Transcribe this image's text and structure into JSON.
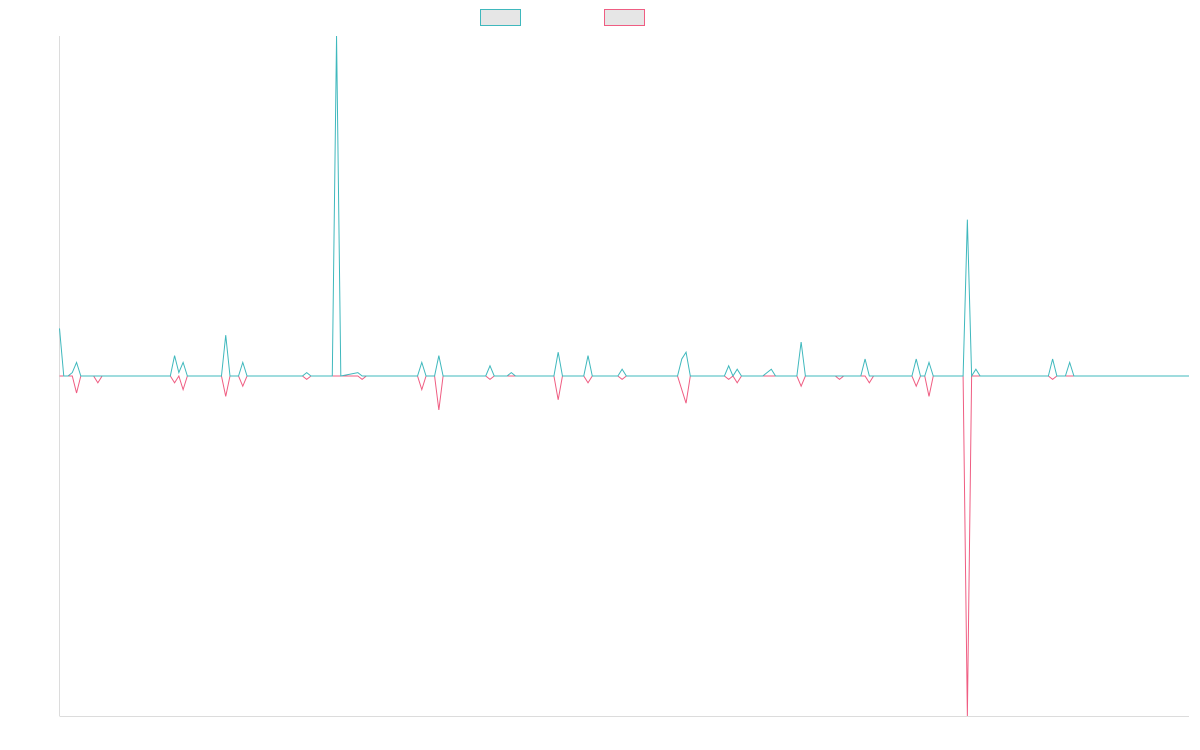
{
  "colors": {
    "series_a": "#3fb8bd",
    "series_b": "#ef5d82",
    "legend_fill": "#e6e6e6",
    "axis": "#dcdcdc"
  },
  "chart_data": {
    "type": "line",
    "title": "",
    "xlabel": "",
    "ylabel": "",
    "ylim": [
      -100,
      100
    ],
    "xlim": [
      0,
      265
    ],
    "grid": false,
    "legend": {
      "placement": "top-center",
      "entries": [
        "",
        ""
      ]
    },
    "series": [
      {
        "color": "#3fb8bd",
        "points": [
          [
            0,
            14
          ],
          [
            1,
            0
          ],
          [
            2,
            0
          ],
          [
            3,
            1
          ],
          [
            4,
            4
          ],
          [
            5,
            0
          ],
          [
            8,
            0
          ],
          [
            9,
            0
          ],
          [
            26,
            0
          ],
          [
            27,
            6
          ],
          [
            28,
            1
          ],
          [
            29,
            4
          ],
          [
            30,
            0
          ],
          [
            38,
            0
          ],
          [
            39,
            12
          ],
          [
            40,
            0
          ],
          [
            42,
            0
          ],
          [
            43,
            4
          ],
          [
            44,
            0
          ],
          [
            45,
            0
          ],
          [
            48,
            0
          ],
          [
            49,
            0
          ],
          [
            57,
            0
          ],
          [
            58,
            1
          ],
          [
            59,
            0
          ],
          [
            64,
            0
          ],
          [
            65,
            100
          ],
          [
            66,
            0
          ],
          [
            70,
            1
          ],
          [
            71,
            0
          ],
          [
            84,
            0
          ],
          [
            85,
            4
          ],
          [
            86,
            0
          ],
          [
            88,
            0
          ],
          [
            89,
            6
          ],
          [
            90,
            0
          ],
          [
            94,
            0
          ],
          [
            95,
            0
          ],
          [
            100,
            0
          ],
          [
            101,
            3
          ],
          [
            102,
            0
          ],
          [
            105,
            0
          ],
          [
            106,
            1
          ],
          [
            107,
            0
          ],
          [
            116,
            0
          ],
          [
            117,
            7
          ],
          [
            118,
            0
          ],
          [
            123,
            0
          ],
          [
            124,
            6
          ],
          [
            125,
            0
          ],
          [
            131,
            0
          ],
          [
            132,
            2
          ],
          [
            133,
            0
          ],
          [
            145,
            0
          ],
          [
            146,
            5
          ],
          [
            147,
            7
          ],
          [
            148,
            0
          ],
          [
            156,
            0
          ],
          [
            157,
            3
          ],
          [
            158,
            0
          ],
          [
            159,
            2
          ],
          [
            160,
            0
          ],
          [
            165,
            0
          ],
          [
            166,
            1
          ],
          [
            167,
            2
          ],
          [
            168,
            0
          ],
          [
            173,
            0
          ],
          [
            174,
            10
          ],
          [
            175,
            0
          ],
          [
            182,
            0
          ],
          [
            183,
            0
          ],
          [
            188,
            0
          ],
          [
            189,
            5
          ],
          [
            190,
            0
          ],
          [
            200,
            0
          ],
          [
            201,
            5
          ],
          [
            202,
            0
          ],
          [
            203,
            0
          ],
          [
            204,
            4
          ],
          [
            205,
            0
          ],
          [
            212,
            0
          ],
          [
            213,
            46
          ],
          [
            214,
            0
          ],
          [
            215,
            2
          ],
          [
            216,
            0
          ],
          [
            232,
            0
          ],
          [
            233,
            5
          ],
          [
            234,
            0
          ],
          [
            236,
            0
          ],
          [
            237,
            4
          ],
          [
            238,
            0
          ],
          [
            265,
            0
          ]
        ]
      },
      {
        "color": "#ef5d82",
        "points": [
          [
            0,
            0
          ],
          [
            3,
            0
          ],
          [
            4,
            -5
          ],
          [
            5,
            0
          ],
          [
            8,
            0
          ],
          [
            9,
            -2
          ],
          [
            10,
            0
          ],
          [
            26,
            0
          ],
          [
            27,
            -2
          ],
          [
            28,
            0
          ],
          [
            29,
            -4
          ],
          [
            30,
            0
          ],
          [
            38,
            0
          ],
          [
            39,
            -6
          ],
          [
            40,
            0
          ],
          [
            42,
            0
          ],
          [
            43,
            -3
          ],
          [
            44,
            0
          ],
          [
            57,
            0
          ],
          [
            58,
            -1
          ],
          [
            59,
            0
          ],
          [
            70,
            0
          ],
          [
            71,
            -1
          ],
          [
            72,
            0
          ],
          [
            84,
            0
          ],
          [
            85,
            -4
          ],
          [
            86,
            0
          ],
          [
            88,
            0
          ],
          [
            89,
            -10
          ],
          [
            90,
            0
          ],
          [
            100,
            0
          ],
          [
            101,
            -1
          ],
          [
            102,
            0
          ],
          [
            116,
            0
          ],
          [
            117,
            -7
          ],
          [
            118,
            0
          ],
          [
            123,
            0
          ],
          [
            124,
            -2
          ],
          [
            125,
            0
          ],
          [
            131,
            0
          ],
          [
            132,
            -1
          ],
          [
            133,
            0
          ],
          [
            145,
            0
          ],
          [
            146,
            -4
          ],
          [
            147,
            -8
          ],
          [
            148,
            0
          ],
          [
            156,
            0
          ],
          [
            157,
            -1
          ],
          [
            158,
            0
          ],
          [
            159,
            -2
          ],
          [
            160,
            0
          ],
          [
            173,
            0
          ],
          [
            174,
            -3
          ],
          [
            175,
            0
          ],
          [
            182,
            0
          ],
          [
            183,
            -1
          ],
          [
            184,
            0
          ],
          [
            189,
            0
          ],
          [
            190,
            -2
          ],
          [
            191,
            0
          ],
          [
            200,
            0
          ],
          [
            201,
            -3
          ],
          [
            202,
            0
          ],
          [
            203,
            0
          ],
          [
            204,
            -6
          ],
          [
            205,
            0
          ],
          [
            212,
            0
          ],
          [
            213,
            -100
          ],
          [
            214,
            0
          ],
          [
            232,
            0
          ],
          [
            233,
            -1
          ],
          [
            234,
            0
          ],
          [
            265,
            0
          ]
        ]
      }
    ]
  }
}
